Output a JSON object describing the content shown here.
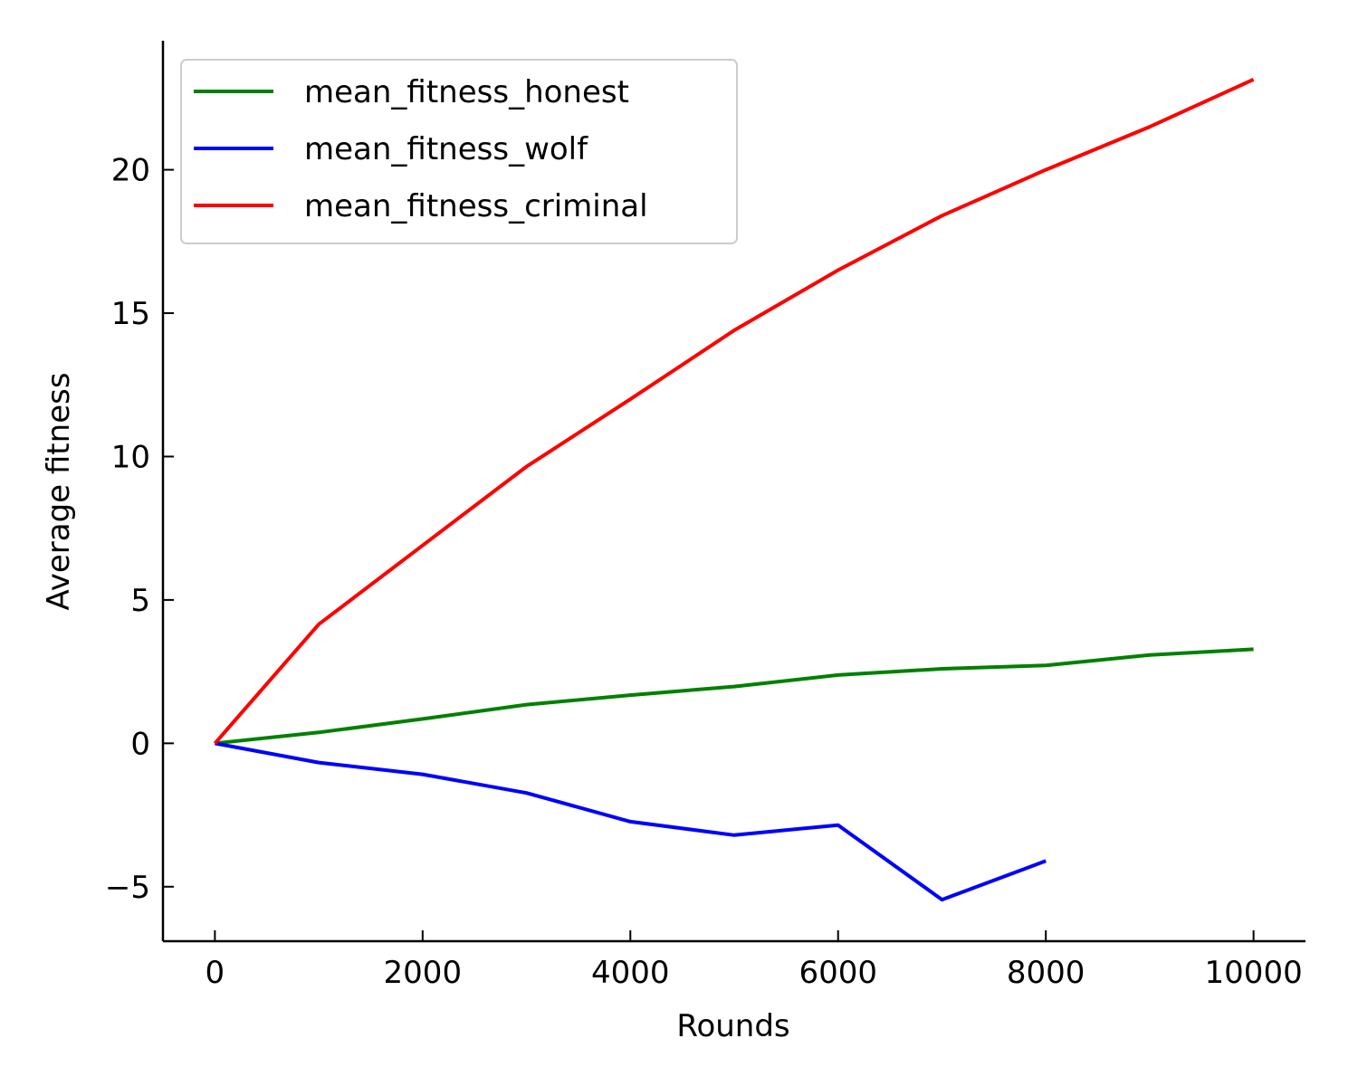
{
  "chart_data": {
    "type": "line",
    "title": "",
    "xlabel": "Rounds",
    "ylabel": "Average fitness",
    "xlim": [
      -500,
      10500
    ],
    "ylim": [
      -6.9,
      24.5
    ],
    "xticks": [
      0,
      2000,
      4000,
      6000,
      8000,
      10000
    ],
    "xtick_labels": [
      "0",
      "2000",
      "4000",
      "6000",
      "8000",
      "10000"
    ],
    "yticks": [
      -5,
      0,
      5,
      10,
      15,
      20
    ],
    "ytick_labels": [
      "−5",
      "0",
      "5",
      "10",
      "15",
      "20"
    ],
    "grid": false,
    "legend_position": "top-left",
    "series": [
      {
        "name": "mean_fitness_honest",
        "color": "#008000",
        "x": [
          0,
          1000,
          2000,
          3000,
          4000,
          5000,
          6000,
          7000,
          8000,
          9000,
          10000
        ],
        "y": [
          0,
          0.38,
          0.85,
          1.35,
          1.68,
          1.98,
          2.38,
          2.6,
          2.72,
          3.08,
          3.28
        ]
      },
      {
        "name": "mean_fitness_wolf",
        "color": "#0000ff",
        "x": [
          0,
          1000,
          2000,
          3000,
          4000,
          5000,
          6000,
          7000,
          8000
        ],
        "y": [
          0,
          -0.67,
          -1.08,
          -1.73,
          -2.73,
          -3.2,
          -2.85,
          -5.45,
          -4.1
        ]
      },
      {
        "name": "mean_fitness_criminal",
        "color": "#ff0000",
        "x": [
          0,
          1000,
          2000,
          3000,
          4000,
          5000,
          6000,
          7000,
          8000,
          9000,
          10000
        ],
        "y": [
          0,
          4.15,
          6.9,
          9.65,
          12.0,
          14.4,
          16.5,
          18.4,
          20.0,
          21.5,
          23.15
        ]
      }
    ]
  }
}
